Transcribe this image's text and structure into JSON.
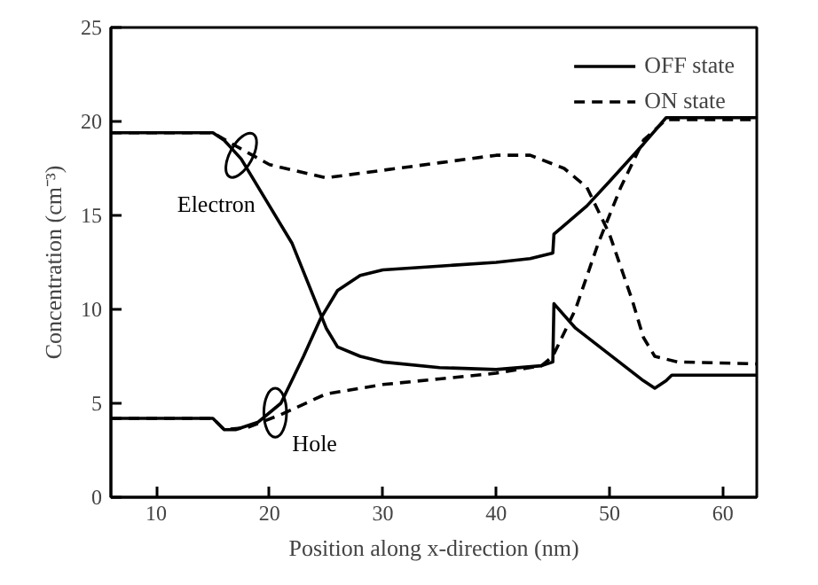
{
  "chart_data": {
    "type": "line",
    "xlabel": "Position along x-direction (nm)",
    "ylabel": "Concentration (cm⁻³)",
    "xlim": [
      6,
      63
    ],
    "ylim": [
      0,
      25
    ],
    "xticks": [
      10,
      20,
      30,
      40,
      50,
      60
    ],
    "yticks": [
      0,
      5,
      10,
      15,
      20,
      25
    ],
    "grid": false,
    "legend": "top right",
    "marker": "none",
    "series": [
      {
        "name": "OFF state",
        "color": "#000000",
        "line_style": "solid",
        "x": [
          6,
          15,
          16,
          17.5,
          20,
          22,
          24,
          25,
          26,
          28,
          30,
          35,
          40,
          44,
          45,
          45.1,
          47,
          50,
          53,
          54,
          55,
          55.5,
          63
        ],
        "values": [
          19.4,
          19.4,
          19.0,
          18.0,
          15.5,
          13.5,
          10.5,
          9.0,
          8.0,
          7.5,
          7.2,
          6.9,
          6.8,
          7.0,
          7.2,
          10.3,
          9.0,
          7.6,
          6.2,
          5.8,
          6.2,
          6.5,
          6.5
        ]
      },
      {
        "name": "ON state",
        "color": "#000000",
        "line_style": "dashed",
        "x": [
          6,
          15,
          17,
          20,
          25,
          30,
          35,
          40,
          43,
          46,
          48,
          50,
          52,
          53,
          54,
          56,
          63
        ],
        "values": [
          19.4,
          19.4,
          18.7,
          17.7,
          17.0,
          17.4,
          17.8,
          18.2,
          18.2,
          17.5,
          16.5,
          14.0,
          10.5,
          8.5,
          7.5,
          7.2,
          7.1
        ]
      },
      {
        "color": "#000000",
        "line_style": "solid",
        "x": [
          6,
          15,
          16,
          17,
          19,
          21,
          23,
          24.5,
          26,
          28,
          30,
          35,
          40,
          43,
          45,
          45.1,
          48,
          50,
          53,
          55,
          63
        ],
        "values": [
          4.2,
          4.2,
          3.6,
          3.6,
          4.0,
          5.0,
          7.5,
          9.5,
          11.0,
          11.8,
          12.1,
          12.3,
          12.5,
          12.7,
          13.0,
          14.0,
          15.5,
          16.8,
          18.8,
          20.2,
          20.2
        ]
      },
      {
        "color": "#000000",
        "line_style": "dashed",
        "x": [
          6,
          15,
          16,
          18,
          21,
          25,
          30,
          35,
          40,
          44,
          45,
          47,
          49,
          51,
          53,
          55,
          63
        ],
        "values": [
          4.2,
          4.2,
          3.6,
          3.7,
          4.4,
          5.5,
          6.0,
          6.3,
          6.6,
          7.0,
          7.5,
          10.0,
          13.5,
          16.5,
          19.0,
          20.1,
          20.1
        ]
      }
    ],
    "annotations": [
      {
        "text": "Electron",
        "x": 17.5,
        "y": 18.2
      },
      {
        "text": "Hole",
        "x": 20.5,
        "y": 4.5
      }
    ]
  }
}
